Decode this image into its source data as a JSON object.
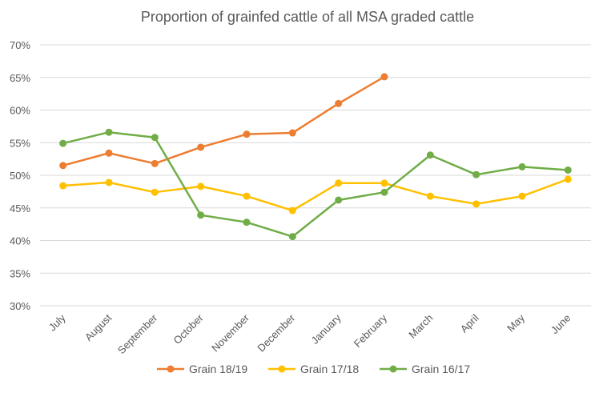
{
  "chart_data": {
    "type": "line",
    "title": "Proportion of grainfed cattle of all MSA graded cattle",
    "xlabel": "",
    "ylabel": "",
    "categories": [
      "July",
      "August",
      "September",
      "October",
      "November",
      "December",
      "January",
      "February",
      "March",
      "April",
      "May",
      "June"
    ],
    "ylim": [
      30,
      70
    ],
    "yticks": [
      "30%",
      "35%",
      "40%",
      "45%",
      "50%",
      "55%",
      "60%",
      "65%",
      "70%"
    ],
    "grid": true,
    "legend_position": "bottom",
    "series": [
      {
        "name": "Grain 18/19",
        "color": "#ed7d31",
        "values": [
          51.5,
          53.4,
          51.8,
          54.3,
          56.3,
          56.5,
          61.0,
          65.1,
          null,
          null,
          null,
          null
        ]
      },
      {
        "name": "Grain 17/18",
        "color": "#ffc000",
        "values": [
          48.4,
          48.9,
          47.4,
          48.3,
          46.8,
          44.6,
          48.8,
          48.8,
          46.8,
          45.6,
          46.8,
          49.4
        ]
      },
      {
        "name": "Grain 16/17",
        "color": "#70ad47",
        "values": [
          54.9,
          56.6,
          55.8,
          43.9,
          42.8,
          40.6,
          46.2,
          47.4,
          53.1,
          50.1,
          51.3,
          50.8
        ]
      }
    ]
  }
}
